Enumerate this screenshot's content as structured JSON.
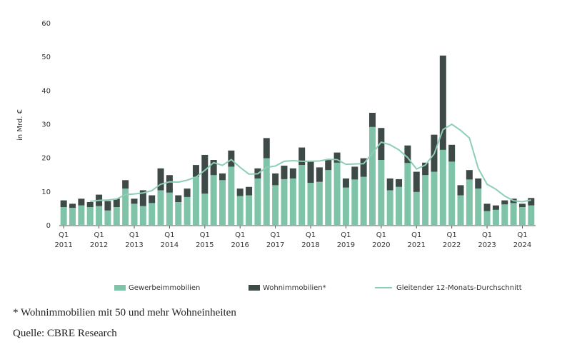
{
  "chart_data": {
    "type": "bar",
    "stacked": true,
    "y_label": "in Mrd. €",
    "categories": [
      "Q1 2011",
      null,
      null,
      null,
      "Q1 2012",
      null,
      null,
      null,
      "Q1 2013",
      null,
      null,
      null,
      "Q1 2014",
      null,
      null,
      null,
      "Q1 2015",
      null,
      null,
      null,
      "Q1 2016",
      null,
      null,
      null,
      "Q1 2017",
      null,
      null,
      null,
      "Q1 2018",
      null,
      null,
      null,
      "Q1 2019",
      null,
      null,
      null,
      "Q1 2020",
      null,
      null,
      null,
      "Q1 2021",
      null,
      null,
      null,
      "Q1 2022",
      null,
      null,
      null,
      "Q1 2023",
      null,
      null,
      null,
      "Q1 2024",
      null
    ],
    "series": [
      {
        "name": "Gewerbeimmobilien",
        "type": "bar",
        "color": "#7fc4a8",
        "values": [
          5.5,
          5.3,
          6.0,
          5.5,
          5.8,
          4.5,
          5.5,
          11.0,
          6.5,
          5.8,
          6.7,
          10.5,
          9.8,
          7.0,
          8.5,
          14.5,
          9.5,
          15.0,
          13.5,
          17.5,
          8.8,
          9.0,
          14.0,
          20.0,
          12.0,
          13.8,
          14.0,
          18.0,
          12.7,
          13.0,
          16.5,
          18.7,
          11.3,
          13.7,
          14.5,
          29.3,
          19.5,
          10.5,
          11.5,
          18.6,
          10.0,
          15.0,
          16.0,
          22.5,
          19.0,
          9.0,
          13.7,
          11.0,
          4.3,
          4.7,
          6.3,
          6.7,
          5.5,
          6.0
        ]
      },
      {
        "name": "Wohnimmobilien*",
        "type": "bar",
        "color": "#3e4a47",
        "values": [
          2.0,
          1.2,
          2.0,
          1.5,
          3.4,
          2.8,
          2.5,
          2.5,
          1.5,
          4.7,
          2.3,
          6.5,
          5.2,
          2.0,
          2.5,
          3.5,
          11.5,
          4.5,
          2.0,
          4.8,
          2.2,
          2.5,
          3.0,
          6.0,
          3.5,
          4.0,
          3.0,
          5.2,
          6.3,
          4.3,
          3.2,
          3.0,
          2.7,
          3.8,
          5.5,
          4.2,
          9.5,
          3.5,
          2.3,
          5.2,
          6.0,
          3.7,
          11.0,
          28.0,
          5.0,
          3.0,
          2.8,
          3.0,
          2.2,
          1.3,
          1.2,
          1.3,
          1.0,
          2.2
        ]
      },
      {
        "name": "Gleitender 12-Monats-Durchschnitt",
        "type": "line",
        "color": "#8ccfb5",
        "values": [
          null,
          null,
          null,
          7.2,
          7.5,
          7.6,
          7.9,
          9.2,
          9.4,
          9.7,
          10.4,
          12.3,
          13.0,
          12.9,
          13.5,
          14.4,
          16.4,
          18.7,
          17.9,
          19.6,
          17.3,
          15.3,
          15.4,
          17.3,
          17.7,
          19.1,
          19.3,
          19.1,
          19.1,
          19.2,
          19.7,
          19.6,
          18.2,
          18.3,
          18.4,
          21.5,
          24.8,
          24.0,
          22.5,
          20.2,
          16.8,
          18.0,
          21.3,
          28.5,
          30.1,
          28.3,
          26.0,
          17.0,
          12.3,
          10.8,
          8.8,
          7.4,
          7.1,
          7.6
        ]
      }
    ],
    "ylim": [
      0,
      60
    ],
    "yticks": [
      0,
      10,
      20,
      30,
      40,
      50,
      60
    ],
    "grid": false,
    "legend": "bottom"
  },
  "notes": [
    "* Wohnimmobilien mit 50 und mehr Wohneinheiten",
    "Quelle: CBRE Research"
  ]
}
